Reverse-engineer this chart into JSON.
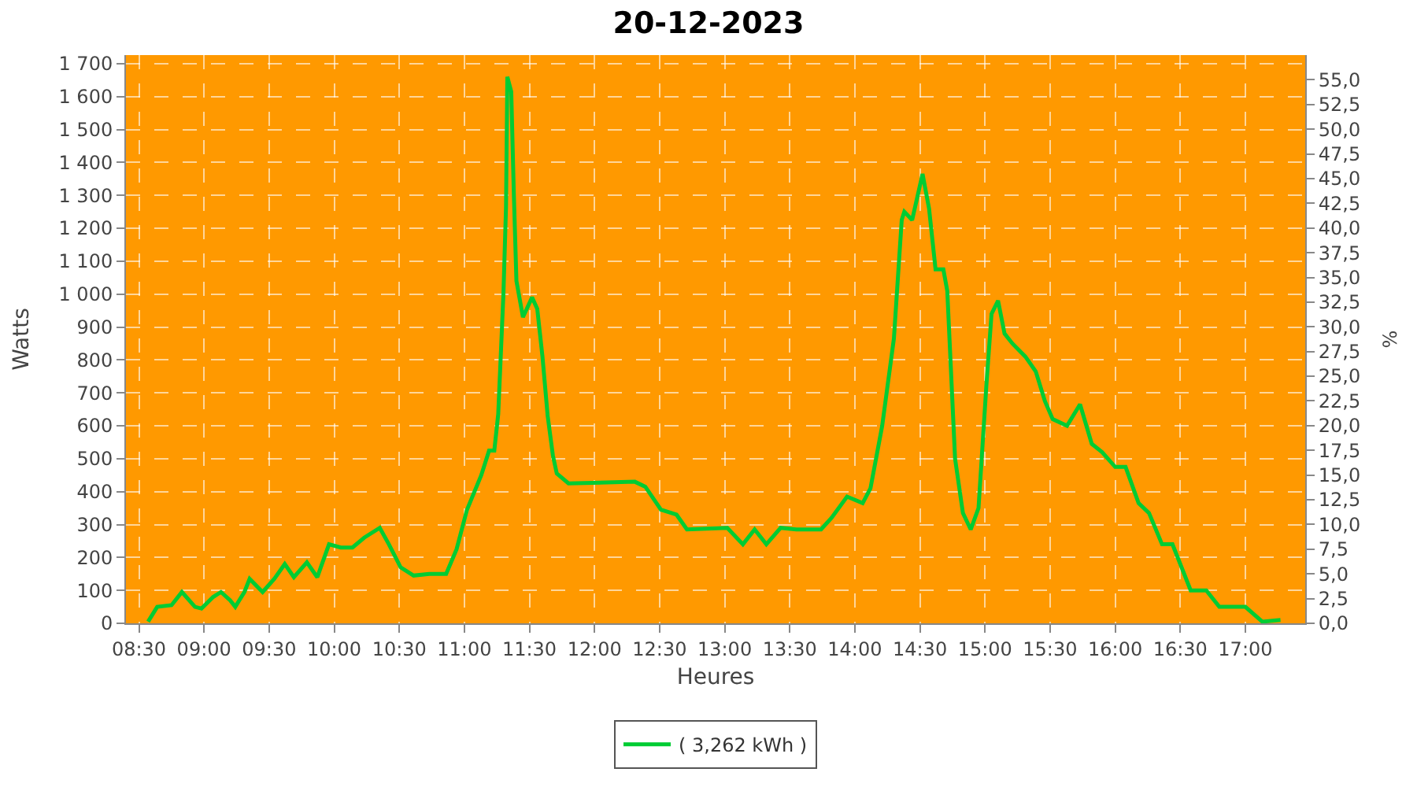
{
  "chart_data": {
    "type": "line",
    "title": "20-12-2023",
    "xlabel": "Heures",
    "ylabel": "Watts",
    "y2label": "%",
    "x": [
      8.57,
      8.64,
      8.75,
      8.83,
      8.93,
      8.98,
      9.07,
      9.13,
      9.2,
      9.24,
      9.31,
      9.35,
      9.45,
      9.54,
      9.62,
      9.69,
      9.79,
      9.87,
      9.96,
      10.05,
      10.14,
      10.23,
      10.35,
      10.42,
      10.51,
      10.61,
      10.73,
      10.86,
      10.94,
      11.02,
      11.13,
      11.19,
      11.23,
      11.26,
      11.3,
      11.32,
      11.33,
      11.36,
      11.38,
      11.4,
      11.45,
      11.52,
      11.56,
      11.6,
      11.64,
      11.68,
      11.71,
      11.8,
      12.31,
      12.39,
      12.51,
      12.63,
      12.71,
      13.02,
      13.14,
      13.23,
      13.32,
      13.43,
      13.55,
      13.74,
      13.82,
      13.94,
      14.06,
      14.12,
      14.21,
      14.3,
      14.36,
      14.38,
      14.44,
      14.52,
      14.57,
      14.62,
      14.68,
      14.71,
      14.77,
      14.83,
      14.89,
      14.95,
      15.01,
      15.05,
      15.1,
      15.15,
      15.21,
      15.31,
      15.39,
      15.46,
      15.52,
      15.63,
      15.73,
      15.82,
      15.9,
      16.0,
      16.08,
      16.18,
      16.26,
      16.36,
      16.44,
      16.58,
      16.7,
      16.8,
      17.0,
      17.13,
      17.27
    ],
    "series": [
      {
        "name": "( 3,262 kWh )",
        "color": "#00cc33",
        "values": [
          5,
          50,
          55,
          95,
          50,
          45,
          80,
          95,
          70,
          50,
          95,
          135,
          95,
          135,
          180,
          140,
          185,
          140,
          240,
          230,
          230,
          260,
          290,
          240,
          170,
          145,
          150,
          150,
          225,
          345,
          450,
          525,
          525,
          635,
          1000,
          1265,
          1660,
          1615,
          1305,
          1040,
          930,
          990,
          955,
          810,
          630,
          510,
          455,
          425,
          430,
          415,
          345,
          330,
          285,
          290,
          240,
          285,
          240,
          290,
          285,
          285,
          320,
          385,
          365,
          410,
          600,
          865,
          1225,
          1250,
          1225,
          1365,
          1260,
          1075,
          1075,
          1010,
          500,
          335,
          285,
          350,
          720,
          940,
          980,
          880,
          850,
          810,
          765,
          675,
          620,
          600,
          665,
          545,
          520,
          475,
          475,
          365,
          335,
          240,
          240,
          100,
          100,
          50,
          50,
          5,
          10
        ]
      }
    ],
    "xlim": [
      8.4,
      17.46
    ],
    "xticks": [
      {
        "value": 8.5,
        "label": "08:30"
      },
      {
        "value": 9,
        "label": "09:00"
      },
      {
        "value": 9.5,
        "label": "09:30"
      },
      {
        "value": 10,
        "label": "10:00"
      },
      {
        "value": 10.5,
        "label": "10:30"
      },
      {
        "value": 11,
        "label": "11:00"
      },
      {
        "value": 11.5,
        "label": "11:30"
      },
      {
        "value": 12,
        "label": "12:00"
      },
      {
        "value": 12.5,
        "label": "12:30"
      },
      {
        "value": 13,
        "label": "13:00"
      },
      {
        "value": 13.5,
        "label": "13:30"
      },
      {
        "value": 14,
        "label": "14:00"
      },
      {
        "value": 14.5,
        "label": "14:30"
      },
      {
        "value": 15,
        "label": "15:00"
      },
      {
        "value": 15.5,
        "label": "15:30"
      },
      {
        "value": 16,
        "label": "16:00"
      },
      {
        "value": 16.5,
        "label": "16:30"
      },
      {
        "value": 17,
        "label": "17:00"
      }
    ],
    "ylim": [
      0,
      1726
    ],
    "yticks": [
      0,
      100,
      200,
      300,
      400,
      500,
      600,
      700,
      800,
      900,
      {
        "value": 1000,
        "label": "1 000"
      },
      {
        "value": 1100,
        "label": "1 100"
      },
      {
        "value": 1200,
        "label": "1 200"
      },
      {
        "value": 1300,
        "label": "1 300"
      },
      {
        "value": 1400,
        "label": "1 400"
      },
      {
        "value": 1500,
        "label": "1 500"
      },
      {
        "value": 1600,
        "label": "1 600"
      },
      {
        "value": 1700,
        "label": "1 700"
      }
    ],
    "y2lim": [
      0,
      57.5
    ],
    "y2ticks": [
      {
        "value": 0,
        "label": "0,0"
      },
      {
        "value": 2.5,
        "label": "2,5"
      },
      {
        "value": 5,
        "label": "5,0"
      },
      {
        "value": 7.5,
        "label": "7,5"
      },
      {
        "value": 10,
        "label": "10,0"
      },
      {
        "value": 12.5,
        "label": "12,5"
      },
      {
        "value": 15,
        "label": "15,0"
      },
      {
        "value": 17.5,
        "label": "17,5"
      },
      {
        "value": 20,
        "label": "20,0"
      },
      {
        "value": 22.5,
        "label": "22,5"
      },
      {
        "value": 25,
        "label": "25,0"
      },
      {
        "value": 27.5,
        "label": "27,5"
      },
      {
        "value": 30,
        "label": "30,0"
      },
      {
        "value": 32.5,
        "label": "32,5"
      },
      {
        "value": 35,
        "label": "35,0"
      },
      {
        "value": 37.5,
        "label": "37,5"
      },
      {
        "value": 40,
        "label": "40,0"
      },
      {
        "value": 42.5,
        "label": "42,5"
      },
      {
        "value": 45,
        "label": "45,0"
      },
      {
        "value": 47.5,
        "label": "47,5"
      },
      {
        "value": 50,
        "label": "50,0"
      },
      {
        "value": 52.5,
        "label": "52,5"
      },
      {
        "value": 55,
        "label": "55,0"
      }
    ],
    "grid": true,
    "legend": "bottom",
    "marker": "none",
    "line_style": "solid"
  }
}
